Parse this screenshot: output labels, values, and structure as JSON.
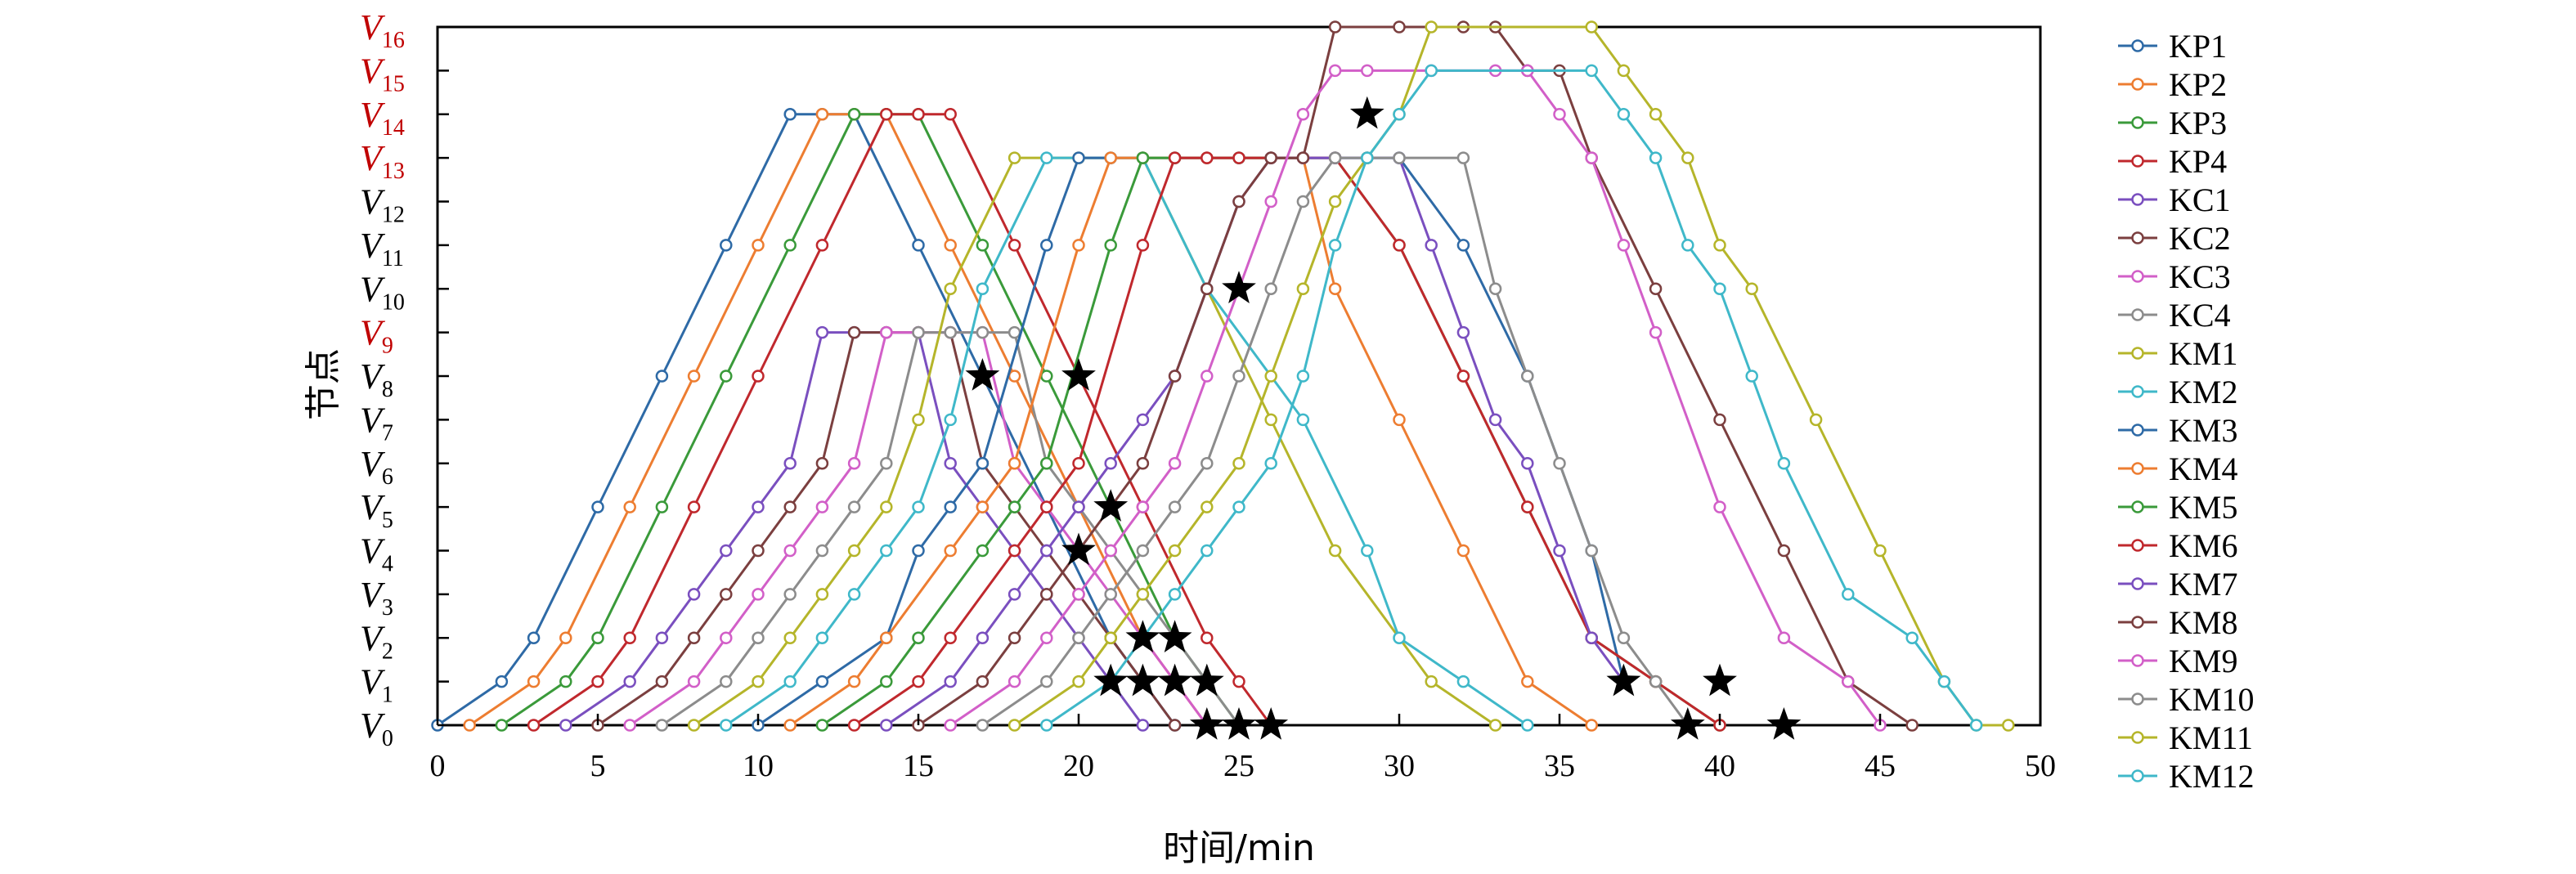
{
  "chart_data": {
    "type": "line",
    "xlabel": "时间/min",
    "ylabel": "节点",
    "xlim": [
      0,
      50
    ],
    "xticks": [
      0,
      5,
      10,
      15,
      20,
      25,
      30,
      35,
      40,
      45,
      50
    ],
    "ylim": [
      0,
      16
    ],
    "yticks": [
      {
        "main": "V",
        "sub": "0",
        "color": "#000000"
      },
      {
        "main": "V",
        "sub": "1",
        "color": "#000000"
      },
      {
        "main": "V",
        "sub": "2",
        "color": "#000000"
      },
      {
        "main": "V",
        "sub": "3",
        "color": "#000000"
      },
      {
        "main": "V",
        "sub": "4",
        "color": "#000000"
      },
      {
        "main": "V",
        "sub": "5",
        "color": "#000000"
      },
      {
        "main": "V",
        "sub": "6",
        "color": "#000000"
      },
      {
        "main": "V",
        "sub": "7",
        "color": "#000000"
      },
      {
        "main": "V",
        "sub": "8",
        "color": "#000000"
      },
      {
        "main": "V",
        "sub": "9",
        "color": "#c00000"
      },
      {
        "main": "V",
        "sub": "10",
        "color": "#000000"
      },
      {
        "main": "V",
        "sub": "11",
        "color": "#000000"
      },
      {
        "main": "V",
        "sub": "12",
        "color": "#000000"
      },
      {
        "main": "V",
        "sub": "13",
        "color": "#c00000"
      },
      {
        "main": "V",
        "sub": "14",
        "color": "#c00000"
      },
      {
        "main": "V",
        "sub": "15",
        "color": "#c00000"
      },
      {
        "main": "V",
        "sub": "16",
        "color": "#c00000"
      }
    ],
    "grid": false,
    "legend_position": "right",
    "series": [
      {
        "name": "KP1",
        "color": "#2e6aa6",
        "x": [
          0,
          2,
          3,
          5,
          7,
          9,
          11,
          12,
          13,
          15,
          17,
          19,
          21,
          22,
          23
        ],
        "y": [
          0,
          1,
          2,
          5,
          8,
          11,
          14,
          14,
          14,
          11,
          8,
          5,
          2,
          1,
          0
        ]
      },
      {
        "name": "KP2",
        "color": "#ed7d31",
        "x": [
          1,
          3,
          4,
          6,
          8,
          10,
          12,
          13,
          14,
          16,
          18,
          20,
          22,
          23,
          24
        ],
        "y": [
          0,
          1,
          2,
          5,
          8,
          11,
          14,
          14,
          14,
          11,
          8,
          5,
          2,
          1,
          0
        ]
      },
      {
        "name": "KP3",
        "color": "#3a9a3a",
        "x": [
          2,
          4,
          5,
          7,
          9,
          11,
          13,
          14,
          15,
          17,
          19,
          21,
          23,
          24,
          25
        ],
        "y": [
          0,
          1,
          2,
          5,
          8,
          11,
          14,
          14,
          14,
          11,
          8,
          5,
          2,
          1,
          0
        ]
      },
      {
        "name": "KP4",
        "color": "#c0282d",
        "x": [
          3,
          5,
          6,
          8,
          10,
          12,
          14,
          15,
          16,
          18,
          20,
          22,
          24,
          25,
          26
        ],
        "y": [
          0,
          1,
          2,
          5,
          8,
          11,
          14,
          14,
          14,
          11,
          8,
          5,
          2,
          1,
          0
        ]
      },
      {
        "name": "KC1",
        "color": "#7a4fbf",
        "x": [
          4,
          6,
          7,
          8,
          9,
          10,
          11,
          12,
          13,
          14,
          15,
          16,
          17,
          18,
          19,
          20,
          21,
          22
        ],
        "y": [
          0,
          1,
          2,
          3,
          4,
          5,
          6,
          9,
          9,
          9,
          9,
          6,
          5,
          4,
          3,
          2,
          1,
          0
        ]
      },
      {
        "name": "KC2",
        "color": "#7b3f3f",
        "x": [
          5,
          7,
          8,
          9,
          10,
          11,
          12,
          13,
          14,
          15,
          16,
          17,
          18,
          19,
          20,
          21,
          22,
          23
        ],
        "y": [
          0,
          1,
          2,
          3,
          4,
          5,
          6,
          9,
          9,
          9,
          9,
          6,
          5,
          4,
          3,
          2,
          1,
          0
        ]
      },
      {
        "name": "KC3",
        "color": "#d25fc8",
        "x": [
          6,
          8,
          9,
          10,
          11,
          12,
          13,
          14,
          15,
          16,
          17,
          18,
          19,
          20,
          21,
          22,
          23,
          24
        ],
        "y": [
          0,
          1,
          2,
          3,
          4,
          5,
          6,
          9,
          9,
          9,
          9,
          6,
          5,
          4,
          3,
          2,
          1,
          0
        ]
      },
      {
        "name": "KC4",
        "color": "#8c8c8c",
        "x": [
          7,
          9,
          10,
          11,
          12,
          13,
          14,
          15,
          16,
          17,
          18,
          19,
          20,
          21,
          22,
          23,
          24,
          25
        ],
        "y": [
          0,
          1,
          2,
          3,
          4,
          5,
          6,
          9,
          9,
          9,
          9,
          6,
          5,
          4,
          3,
          2,
          1,
          0
        ]
      },
      {
        "name": "KM1",
        "color": "#b5b52a",
        "x": [
          8,
          10,
          11,
          12,
          13,
          14,
          15,
          16,
          18,
          20,
          22,
          24,
          26,
          28,
          31,
          33
        ],
        "y": [
          0,
          1,
          2,
          3,
          4,
          5,
          7,
          10,
          13,
          13,
          13,
          10,
          7,
          4,
          1,
          0
        ]
      },
      {
        "name": "KM2",
        "color": "#3fb8c9",
        "x": [
          9,
          11,
          12,
          13,
          14,
          15,
          16,
          17,
          19,
          21,
          22,
          24,
          27,
          29,
          30,
          32,
          34
        ],
        "y": [
          0,
          1,
          2,
          3,
          4,
          5,
          7,
          10,
          13,
          13,
          13,
          10,
          7,
          4,
          2,
          1,
          0
        ]
      },
      {
        "name": "KM3",
        "color": "#2e6aa6",
        "x": [
          10,
          12,
          14,
          15,
          16,
          17,
          19,
          20,
          21,
          22,
          23,
          24,
          25,
          26,
          27,
          28,
          29,
          30,
          32,
          34,
          36,
          37
        ],
        "y": [
          0,
          1,
          2,
          4,
          5,
          6,
          11,
          13,
          13,
          13,
          13,
          13,
          13,
          13,
          13,
          13,
          13,
          13,
          11,
          8,
          4,
          1
        ]
      },
      {
        "name": "KM4",
        "color": "#ed7d31",
        "x": [
          11,
          13,
          14,
          16,
          17,
          18,
          20,
          21,
          22,
          24,
          26,
          27,
          28,
          30,
          32,
          34,
          36
        ],
        "y": [
          0,
          1,
          2,
          4,
          5,
          6,
          11,
          13,
          13,
          13,
          13,
          13,
          10,
          7,
          4,
          1,
          0
        ]
      },
      {
        "name": "KM5",
        "color": "#3a9a3a",
        "x": [
          12,
          14,
          15,
          17,
          18,
          19,
          21,
          22,
          23,
          25,
          26,
          28,
          30,
          32,
          34,
          36,
          38,
          40
        ],
        "y": [
          0,
          1,
          2,
          4,
          5,
          6,
          11,
          13,
          13,
          13,
          13,
          13,
          11,
          8,
          5,
          2,
          1,
          0
        ]
      },
      {
        "name": "KM6",
        "color": "#c0282d",
        "x": [
          13,
          15,
          16,
          18,
          19,
          20,
          22,
          23,
          24,
          25,
          26,
          28,
          30,
          32,
          34,
          36,
          38,
          40
        ],
        "y": [
          0,
          1,
          2,
          4,
          5,
          6,
          11,
          13,
          13,
          13,
          13,
          13,
          11,
          8,
          5,
          2,
          1,
          0
        ]
      },
      {
        "name": "KM7",
        "color": "#7a4fbf",
        "x": [
          14,
          16,
          17,
          18,
          19,
          20,
          21,
          22,
          23,
          24,
          25,
          26,
          27,
          28,
          29,
          30,
          31,
          32,
          33,
          34,
          35,
          36,
          37
        ],
        "y": [
          0,
          1,
          2,
          3,
          4,
          5,
          6,
          7,
          8,
          10,
          12,
          13,
          13,
          13,
          13,
          13,
          11,
          9,
          7,
          6,
          4,
          2,
          1
        ]
      },
      {
        "name": "KM8",
        "color": "#7b3f3f",
        "x": [
          15,
          17,
          18,
          19,
          20,
          21,
          22,
          23,
          24,
          25,
          26,
          27,
          28,
          30,
          32,
          33,
          34,
          35,
          36,
          38,
          40,
          42,
          44,
          46
        ],
        "y": [
          0,
          1,
          2,
          3,
          4,
          5,
          6,
          8,
          10,
          12,
          13,
          13,
          16,
          16,
          16,
          16,
          15,
          15,
          13,
          10,
          7,
          4,
          1,
          0
        ]
      },
      {
        "name": "KM9",
        "color": "#d25fc8",
        "x": [
          16,
          18,
          19,
          20,
          21,
          22,
          23,
          24,
          25,
          26,
          27,
          28,
          29,
          31,
          33,
          34,
          35,
          36,
          37,
          38,
          40,
          42,
          44,
          45
        ],
        "y": [
          0,
          1,
          2,
          3,
          4,
          5,
          6,
          8,
          10,
          12,
          14,
          15,
          15,
          15,
          15,
          15,
          14,
          13,
          11,
          9,
          5,
          2,
          1,
          0
        ]
      },
      {
        "name": "KM10",
        "color": "#8c8c8c",
        "x": [
          17,
          19,
          20,
          21,
          22,
          23,
          24,
          25,
          26,
          27,
          28,
          29,
          30,
          32,
          33,
          34,
          35,
          36,
          37,
          38,
          39
        ],
        "y": [
          0,
          1,
          2,
          3,
          4,
          5,
          6,
          8,
          10,
          12,
          13,
          13,
          13,
          13,
          10,
          8,
          6,
          4,
          2,
          1,
          0
        ]
      },
      {
        "name": "KM11",
        "color": "#b5b52a",
        "x": [
          18,
          20,
          21,
          22,
          23,
          24,
          25,
          26,
          27,
          28,
          29,
          30,
          31,
          36,
          37,
          38,
          39,
          40,
          41,
          43,
          45,
          47,
          48,
          49
        ],
        "y": [
          0,
          1,
          2,
          3,
          4,
          5,
          6,
          8,
          10,
          12,
          13,
          14,
          16,
          16,
          15,
          14,
          13,
          11,
          10,
          7,
          4,
          1,
          0,
          0
        ]
      },
      {
        "name": "KM12",
        "color": "#3fb8c9",
        "x": [
          19,
          21,
          22,
          23,
          24,
          25,
          26,
          27,
          28,
          29,
          30,
          31,
          36,
          37,
          38,
          39,
          40,
          41,
          42,
          44,
          46,
          47,
          48
        ],
        "y": [
          0,
          1,
          2,
          3,
          4,
          5,
          6,
          8,
          11,
          13,
          14,
          15,
          15,
          14,
          13,
          11,
          10,
          8,
          6,
          3,
          2,
          1,
          0
        ]
      }
    ],
    "annotations": {
      "markers": "star",
      "points": [
        {
          "x": 17,
          "y": 8
        },
        {
          "x": 20,
          "y": 8
        },
        {
          "x": 25,
          "y": 10
        },
        {
          "x": 29,
          "y": 14
        },
        {
          "x": 21,
          "y": 5
        },
        {
          "x": 20,
          "y": 4
        },
        {
          "x": 22,
          "y": 2
        },
        {
          "x": 23,
          "y": 2
        },
        {
          "x": 21,
          "y": 1
        },
        {
          "x": 22,
          "y": 1
        },
        {
          "x": 23,
          "y": 1
        },
        {
          "x": 24,
          "y": 1
        },
        {
          "x": 24,
          "y": 0
        },
        {
          "x": 25,
          "y": 0
        },
        {
          "x": 26,
          "y": 0
        },
        {
          "x": 37,
          "y": 1
        },
        {
          "x": 40,
          "y": 1
        },
        {
          "x": 39,
          "y": 0
        },
        {
          "x": 42,
          "y": 0
        }
      ]
    }
  }
}
